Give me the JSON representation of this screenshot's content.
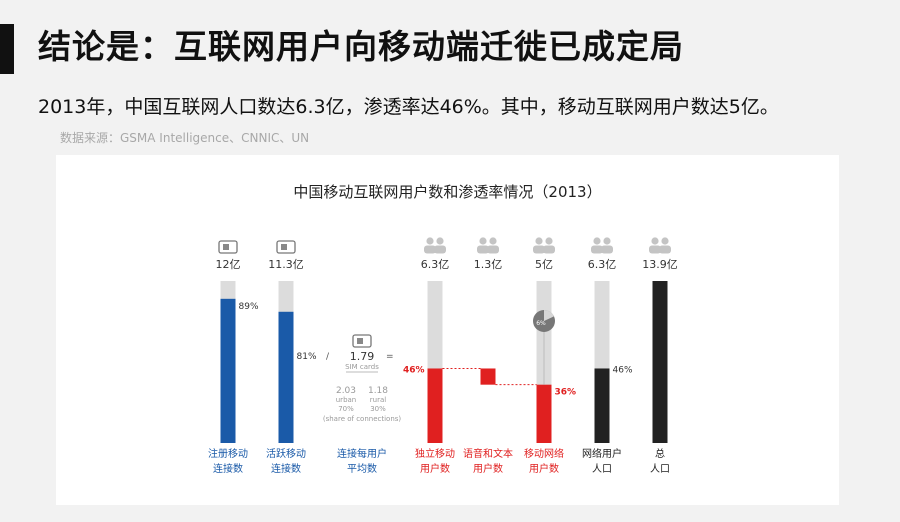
{
  "page": {
    "title": "结论是：互联网用户向移动端迁徙已成定局",
    "subtitle": "2013年，中国互联网人口数达6.3亿，渗透率达46%。其中，移动互联网用户数达5亿。",
    "source": "数据来源：GSMA Intelligence、CNNIC、UN"
  },
  "colors": {
    "blue": "#1a5aa8",
    "red": "#e02020",
    "gray": "#dcdcdc",
    "dark": "#222222"
  },
  "chart_data": {
    "type": "bar",
    "title": "中国移动互联网用户数和渗透率情况（2013）",
    "left_bars": [
      {
        "label_line1": "注册移动",
        "label_line2": "连接数",
        "value_label": "12亿",
        "value": 12,
        "pct_label": "89%",
        "fraction": 0.89,
        "color": "blue",
        "icon": "sim-card-icon"
      },
      {
        "label_line1": "活跃移动",
        "label_line2": "连接数",
        "value_label": "11.3亿",
        "value": 11.3,
        "pct_label": "81%",
        "fraction": 0.81,
        "color": "blue",
        "icon": "sim-card-icon"
      }
    ],
    "connections_per_user": {
      "label_line1": "连接每用户",
      "label_line2": "平均数",
      "divider": "/",
      "value": "1.79",
      "equals": "=",
      "sim_caption": "SIM cards",
      "urban_value": "2.03",
      "urban_label": "urban",
      "urban_share": "70%",
      "rural_value": "1.18",
      "rural_label": "rural",
      "rural_share": "30%",
      "share_caption": "(share of connections)"
    },
    "right_bars": [
      {
        "label_line1": "独立移动",
        "label_line2": "用户数",
        "value_label": "6.3亿",
        "value": 6.3,
        "segment_start": 0,
        "segment_end": 0.46,
        "pct_label": "46%",
        "color": "red",
        "icon": "users-icon"
      },
      {
        "label_line1": "语音和文本",
        "label_line2": "用户数",
        "value_label": "1.3亿",
        "value": 1.3,
        "segment_start": 0.36,
        "segment_end": 0.46,
        "color": "red",
        "icon": "users-icon"
      },
      {
        "label_line1": "移动网络",
        "label_line2": "用户数",
        "value_label": "5亿",
        "value": 5,
        "segment_start": 0,
        "segment_end": 0.36,
        "pct_label": "36%",
        "color": "red",
        "icon": "users-icon",
        "pie_label": "6%",
        "pie_fraction": 0.06
      },
      {
        "label_line1": "网络用户",
        "label_line2": "人口",
        "value_label": "6.3亿",
        "value": 6.3,
        "segment_start": 0,
        "segment_end": 0.46,
        "pct_label": "46%",
        "color": "dark",
        "icon": "users-icon"
      },
      {
        "label_line1": "总",
        "label_line2": "人口",
        "value_label": "13.9亿",
        "value": 13.9,
        "segment_start": 0,
        "segment_end": 1.0,
        "color": "dark",
        "icon": "users-icon"
      }
    ]
  }
}
